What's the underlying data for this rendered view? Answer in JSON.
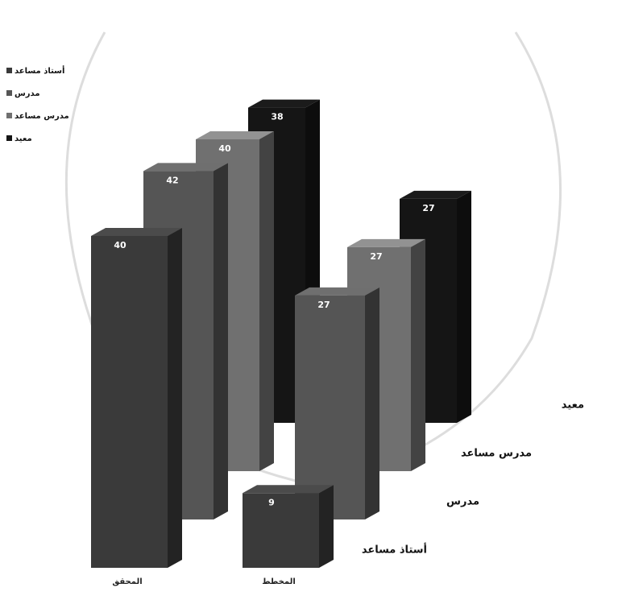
{
  "chart_data": {
    "type": "bar3d",
    "categories": [
      "المحقق",
      "المخطط"
    ],
    "series": [
      {
        "name": "أستاذ مساعد",
        "color": "#3a3a3a",
        "values": [
          40,
          9
        ]
      },
      {
        "name": "مدرس",
        "color": "#555555",
        "values": [
          42,
          27
        ]
      },
      {
        "name": "مدرس مساعد",
        "color": "#707070",
        "values": [
          40,
          27
        ]
      },
      {
        "name": "معيد",
        "color": "#151515",
        "values": [
          38,
          27
        ]
      }
    ]
  }
}
